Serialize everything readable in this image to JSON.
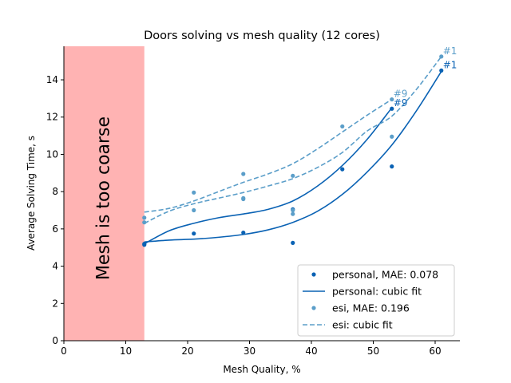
{
  "chart_data": {
    "type": "scatter",
    "title": "Doors solving vs mesh quality (12 cores)",
    "xlabel": "Mesh Quality, %",
    "ylabel": "Average Solving Time, s",
    "xlim": [
      0,
      64
    ],
    "ylim": [
      0,
      15.8
    ],
    "xticks": [
      0,
      10,
      20,
      30,
      40,
      50,
      60
    ],
    "yticks": [
      0,
      2,
      4,
      6,
      8,
      10,
      12,
      14
    ],
    "grid": false,
    "legend_position": "lower-right",
    "region": {
      "x_from": 0,
      "x_to": 13,
      "label": "Mesh is too coarse",
      "color": "#ffb3b3"
    },
    "series": [
      {
        "name": "personal, MAE: 0.078",
        "fit_name": "personal: cubic fit",
        "color": "#0a62b4",
        "points": [
          {
            "x": 13,
            "y": 5.2
          },
          {
            "x": 13,
            "y": 5.15
          },
          {
            "x": 21,
            "y": 5.75
          },
          {
            "x": 29,
            "y": 5.8
          },
          {
            "x": 37,
            "y": 7.05
          },
          {
            "x": 37,
            "y": 5.25
          },
          {
            "x": 45,
            "y": 9.2
          },
          {
            "x": 53,
            "y": 12.45
          },
          {
            "x": 53,
            "y": 9.35
          },
          {
            "x": 61,
            "y": 14.5
          }
        ],
        "fit_upper": [
          [
            13,
            5.2
          ],
          [
            17,
            5.9
          ],
          [
            21,
            6.3
          ],
          [
            25,
            6.6
          ],
          [
            29,
            6.8
          ],
          [
            33,
            7.05
          ],
          [
            37,
            7.5
          ],
          [
            41,
            8.3
          ],
          [
            45,
            9.4
          ],
          [
            49,
            10.8
          ],
          [
            53,
            12.5
          ]
        ],
        "fit_lower": [
          [
            13,
            5.3
          ],
          [
            17,
            5.4
          ],
          [
            21,
            5.45
          ],
          [
            25,
            5.55
          ],
          [
            29,
            5.7
          ],
          [
            33,
            5.95
          ],
          [
            37,
            6.35
          ],
          [
            41,
            6.95
          ],
          [
            45,
            7.85
          ],
          [
            49,
            9.05
          ],
          [
            53,
            10.5
          ],
          [
            57,
            12.35
          ],
          [
            61,
            14.45
          ]
        ],
        "annotations": [
          {
            "x": 61,
            "y": 14.5,
            "text": "#1"
          },
          {
            "x": 53,
            "y": 12.45,
            "text": "#9"
          }
        ]
      },
      {
        "name": "esi, MAE: 0.196",
        "fit_name": "esi: cubic fit",
        "color": "#5b9ec9",
        "points": [
          {
            "x": 13,
            "y": 6.6
          },
          {
            "x": 13,
            "y": 6.35
          },
          {
            "x": 21,
            "y": 7.95
          },
          {
            "x": 21,
            "y": 7.0
          },
          {
            "x": 29,
            "y": 8.95
          },
          {
            "x": 29,
            "y": 7.65
          },
          {
            "x": 29,
            "y": 7.6
          },
          {
            "x": 37,
            "y": 8.85
          },
          {
            "x": 37,
            "y": 7.0
          },
          {
            "x": 37,
            "y": 6.8
          },
          {
            "x": 45,
            "y": 11.5
          },
          {
            "x": 53,
            "y": 12.95
          },
          {
            "x": 53,
            "y": 10.95
          },
          {
            "x": 61,
            "y": 15.25
          }
        ],
        "fit_upper": [
          [
            13,
            6.9
          ],
          [
            17,
            7.1
          ],
          [
            21,
            7.5
          ],
          [
            25,
            8.0
          ],
          [
            29,
            8.5
          ],
          [
            33,
            8.95
          ],
          [
            37,
            9.5
          ],
          [
            41,
            10.3
          ],
          [
            45,
            11.2
          ],
          [
            49,
            12.1
          ],
          [
            53,
            12.95
          ]
        ],
        "fit_lower": [
          [
            13,
            6.3
          ],
          [
            17,
            6.95
          ],
          [
            21,
            7.35
          ],
          [
            25,
            7.65
          ],
          [
            29,
            7.95
          ],
          [
            33,
            8.3
          ],
          [
            37,
            8.7
          ],
          [
            41,
            9.3
          ],
          [
            45,
            10.1
          ],
          [
            49,
            11.25
          ],
          [
            53,
            12.05
          ],
          [
            57,
            13.5
          ],
          [
            61,
            15.25
          ]
        ],
        "annotations": [
          {
            "x": 61,
            "y": 15.25,
            "text": "#1"
          },
          {
            "x": 53,
            "y": 12.95,
            "text": "#9"
          }
        ]
      }
    ]
  }
}
